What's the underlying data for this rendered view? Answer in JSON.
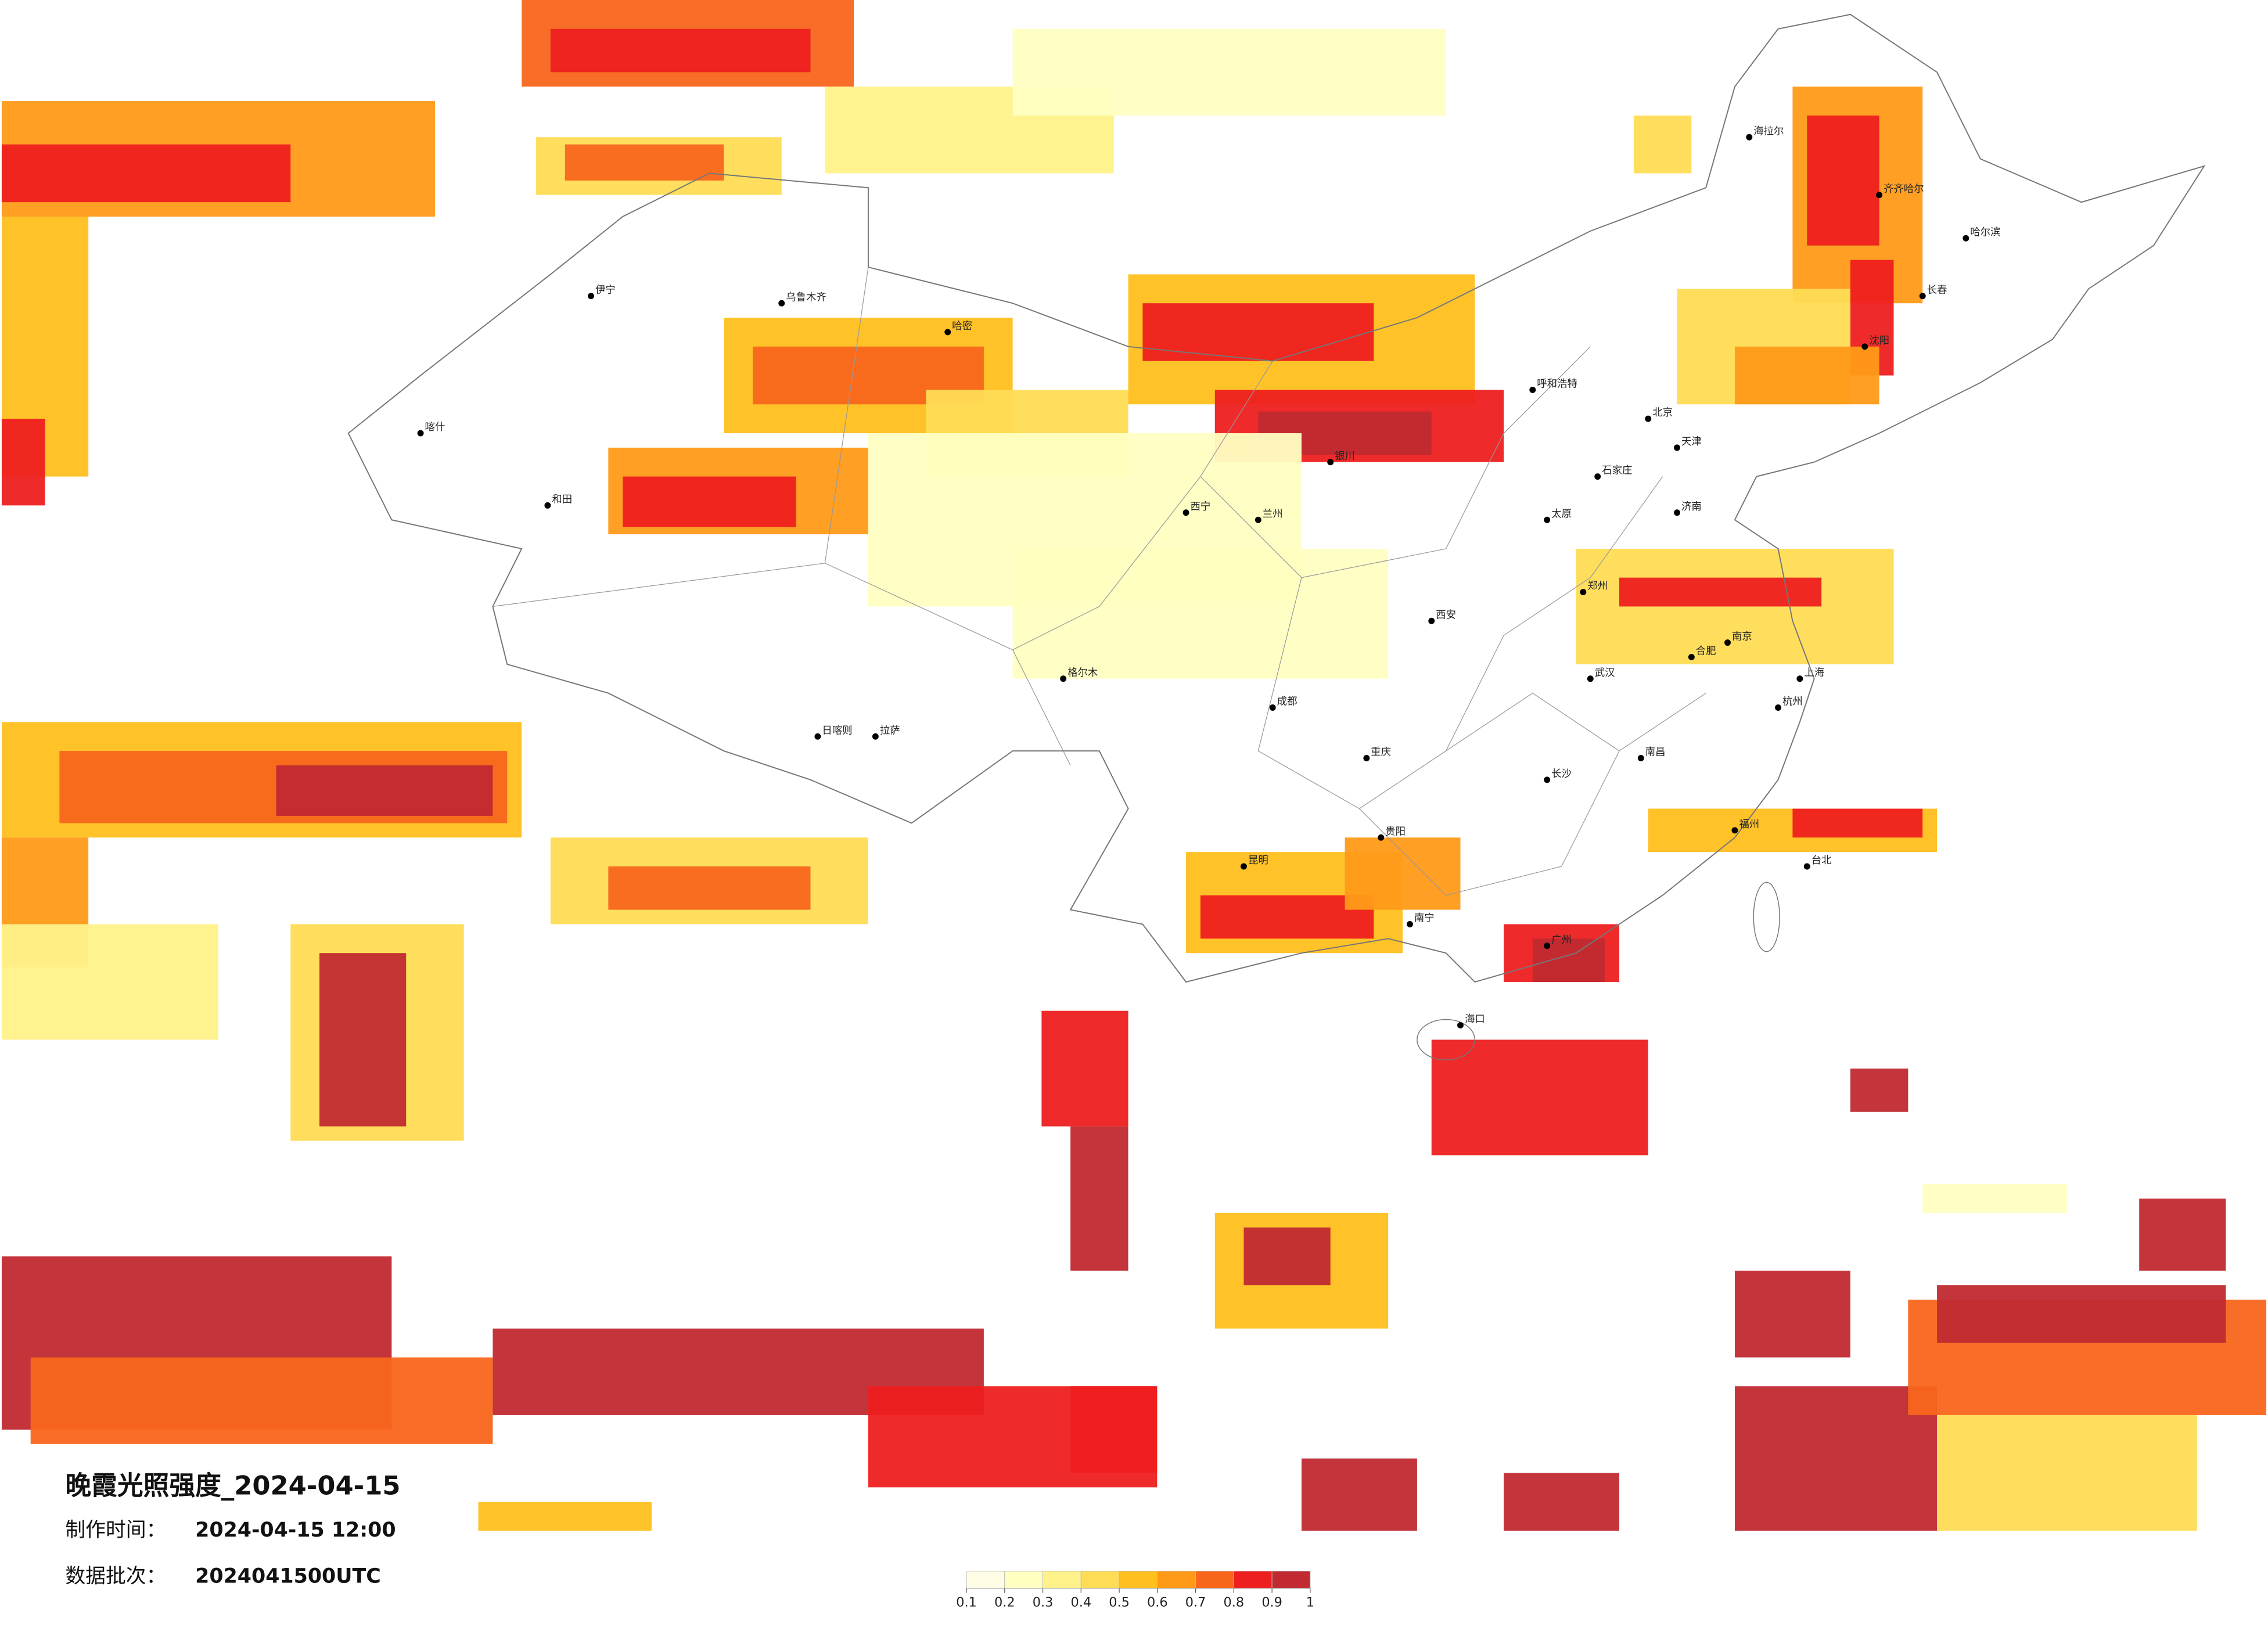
{
  "title": "晚霞光照强度_2024-04-15",
  "made_time": {
    "label": "制作时间：",
    "value": "2024-04-15 12:00"
  },
  "batch": {
    "label": "数据批次：",
    "value": "2024041500UTC"
  },
  "legend": {
    "colors": [
      "#fffce6",
      "#ffffc2",
      "#fff28a",
      "#ffdc55",
      "#ffbf1e",
      "#ff9a18",
      "#f8661c",
      "#ee1f1f",
      "#c02a30"
    ],
    "ticks": [
      0.1,
      0.2,
      0.3,
      0.4,
      0.5,
      0.6,
      0.7,
      0.8,
      0.9,
      1
    ]
  },
  "cities": [
    "北京",
    "天津",
    "上海",
    "哈尔滨",
    "长春",
    "沈阳",
    "呼和浩特",
    "石家庄",
    "太原",
    "济南",
    "郑州",
    "西安",
    "兰州",
    "西宁",
    "银川",
    "乌鲁木齐",
    "拉萨",
    "成都",
    "重庆",
    "贵阳",
    "昆明",
    "南宁",
    "广州",
    "海口",
    "长沙",
    "武汉",
    "南昌",
    "福州",
    "杭州",
    "南京",
    "合肥",
    "台北",
    "喀什",
    "和田",
    "伊宁",
    "哈密",
    "格尔木",
    "日喀则",
    "海拉尔",
    "齐齐哈尔"
  ]
}
